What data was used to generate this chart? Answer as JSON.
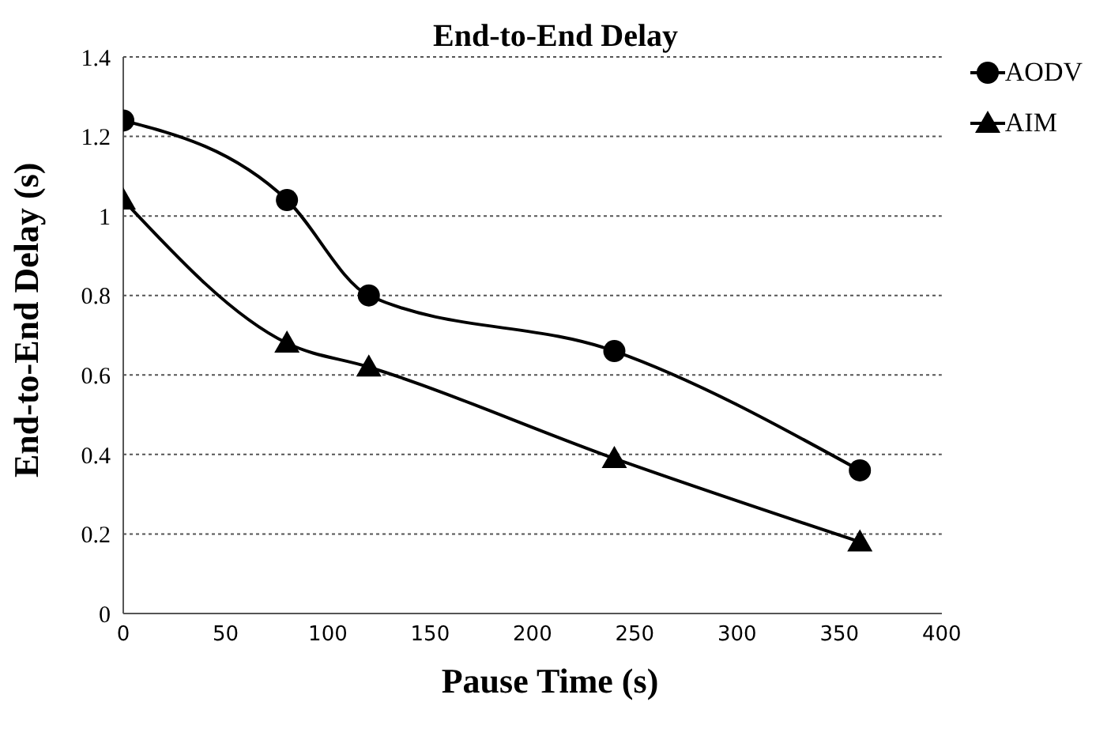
{
  "chart_data": {
    "type": "line",
    "title": "End-to-End Delay",
    "xlabel": "Pause Time (s)",
    "ylabel": "End-to-End Delay (s)",
    "x": [
      0,
      80,
      120,
      240,
      360
    ],
    "series": [
      {
        "name": "AODV",
        "color": "#000000",
        "marker": "circle",
        "values": [
          1.24,
          1.04,
          0.8,
          0.66,
          0.36
        ]
      },
      {
        "name": "AIM",
        "color": "#000000",
        "marker": "triangle",
        "values": [
          1.04,
          0.68,
          0.62,
          0.39,
          0.18
        ]
      }
    ],
    "xlim": [
      0,
      400
    ],
    "xticks": [
      0,
      50,
      100,
      150,
      200,
      250,
      300,
      350,
      400
    ],
    "ylim": [
      0,
      1.4
    ],
    "yticks": [
      0,
      0.2,
      0.4,
      0.6,
      0.8,
      1,
      1.2,
      1.4
    ],
    "grid": "y",
    "legend": "top right"
  }
}
